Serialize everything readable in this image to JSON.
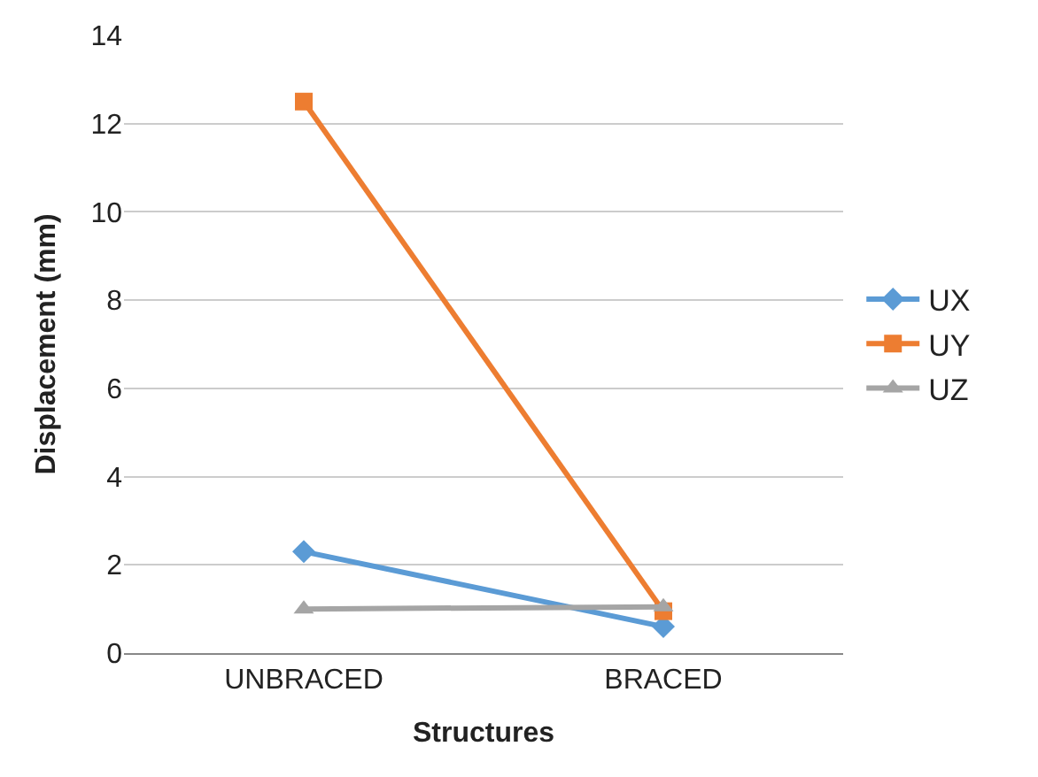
{
  "chart_data": {
    "type": "line",
    "xlabel": "Structures",
    "ylabel": "Displacement (mm)",
    "categories": [
      "UNBRACED",
      "BRACED"
    ],
    "series": [
      {
        "name": "UX",
        "color": "#5b9bd5",
        "marker": "diamond",
        "values": [
          2.3,
          0.6
        ]
      },
      {
        "name": "UY",
        "color": "#ed7d31",
        "marker": "square",
        "values": [
          12.5,
          0.95
        ]
      },
      {
        "name": "UZ",
        "color": "#a5a5a5",
        "marker": "triangle",
        "values": [
          1.0,
          1.05
        ]
      }
    ],
    "ylim": [
      0,
      14
    ],
    "yticks": [
      0,
      2,
      4,
      6,
      8,
      10,
      12,
      14
    ],
    "grid": "y",
    "legend": "right",
    "line_style": "solid"
  }
}
